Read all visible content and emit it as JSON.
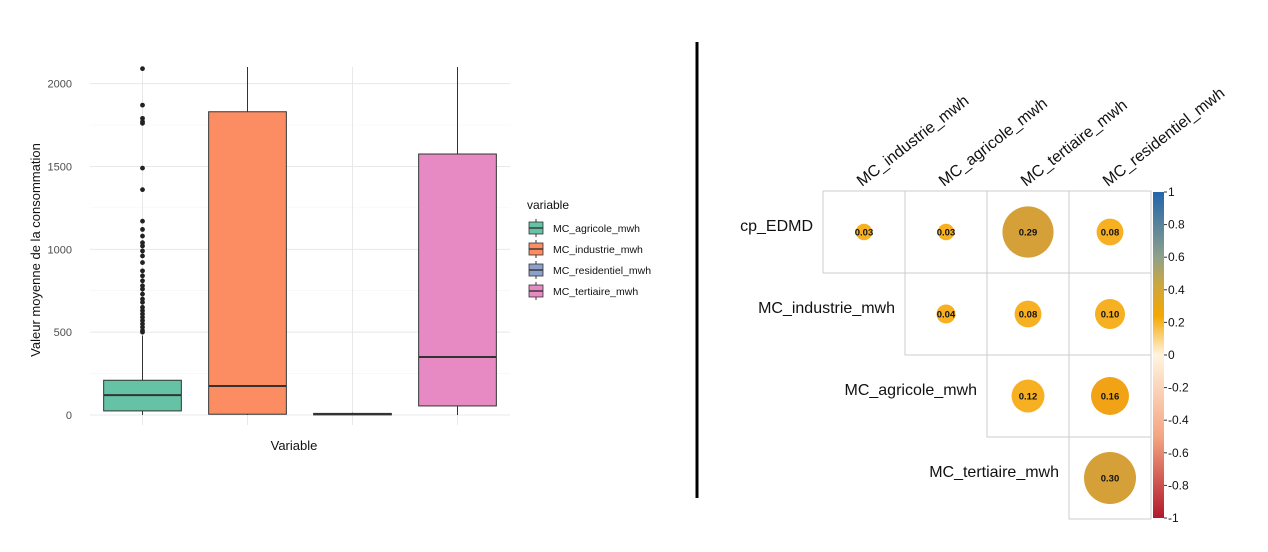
{
  "chart_data": [
    {
      "type": "boxplot",
      "title": "",
      "xlabel": "Variable",
      "ylabel": "Valeur moyenne de la consommation",
      "ylim": [
        -60,
        2100
      ],
      "yticks": [
        0,
        500,
        1000,
        1500,
        2000
      ],
      "grid": true,
      "legend": {
        "title": "variable",
        "position": "right",
        "entries": [
          "MC_agricole_mwh",
          "MC_industrie_mwh",
          "MC_residentiel_mwh",
          "MC_tertiaire_mwh"
        ]
      },
      "series": [
        {
          "name": "MC_agricole_mwh",
          "color": "#66c2a5",
          "q1": 25,
          "median": 120,
          "q3": 210,
          "whisker_low": 0,
          "whisker_high": 480,
          "outliers": [
            2090,
            1870,
            1790,
            1770,
            1760,
            1490,
            1360,
            1170,
            1120,
            1080,
            1040,
            1020,
            990,
            960,
            920,
            870,
            840,
            810,
            780,
            760,
            730,
            700,
            680,
            650,
            630,
            610,
            590,
            570,
            550,
            530,
            510,
            500
          ]
        },
        {
          "name": "MC_industrie_mwh",
          "color": "#fc8d62",
          "q1": 5,
          "median": 175,
          "q3": 1830,
          "whisker_low": 0,
          "whisker_high": 2100,
          "outliers": []
        },
        {
          "name": "MC_residentiel_mwh",
          "color": "#8da0cb",
          "q1": 2,
          "median": 6,
          "q3": 10,
          "whisker_low": 0,
          "whisker_high": 14,
          "outliers": []
        },
        {
          "name": "MC_tertiaire_mwh",
          "color": "#e78ac3",
          "q1": 55,
          "median": 350,
          "q3": 1575,
          "whisker_low": 0,
          "whisker_high": 2100,
          "outliers": []
        }
      ]
    },
    {
      "type": "heatmap",
      "title": "",
      "columns": [
        "MC_industrie_mwh",
        "MC_agricole_mwh",
        "MC_tertiaire_mwh",
        "MC_residentiel_mwh"
      ],
      "rows": [
        "cp_EDMD",
        "MC_industrie_mwh",
        "MC_agricole_mwh",
        "MC_tertiaire_mwh"
      ],
      "cells": [
        {
          "row": 0,
          "col": 0,
          "value": 0.03,
          "label": "0.03"
        },
        {
          "row": 0,
          "col": 1,
          "value": 0.03,
          "label": "0.03"
        },
        {
          "row": 0,
          "col": 2,
          "value": 0.29,
          "label": "0.29"
        },
        {
          "row": 0,
          "col": 3,
          "value": 0.08,
          "label": "0.08"
        },
        {
          "row": 1,
          "col": 1,
          "value": 0.04,
          "label": "0.04"
        },
        {
          "row": 1,
          "col": 2,
          "value": 0.08,
          "label": "0.08"
        },
        {
          "row": 1,
          "col": 3,
          "value": 0.1,
          "label": "0.10"
        },
        {
          "row": 2,
          "col": 2,
          "value": 0.12,
          "label": "0.12"
        },
        {
          "row": 2,
          "col": 3,
          "value": 0.16,
          "label": "0.16"
        },
        {
          "row": 3,
          "col": 3,
          "value": 0.3,
          "label": "0.30"
        }
      ],
      "colorbar": {
        "range": [
          -1,
          1
        ],
        "ticks": [
          "1",
          "0.8",
          "0.6",
          "0.4",
          "0.2",
          "0",
          "-0.2",
          "-0.4",
          "-0.6",
          "-0.8",
          "-1"
        ],
        "colors": {
          "neg_strong": "#b2182b",
          "neutral": "#fff4e0",
          "pos_mid": "#f5a700",
          "pos_mid2": "#c9a742",
          "pos_strong": "#2166ac"
        }
      }
    }
  ]
}
